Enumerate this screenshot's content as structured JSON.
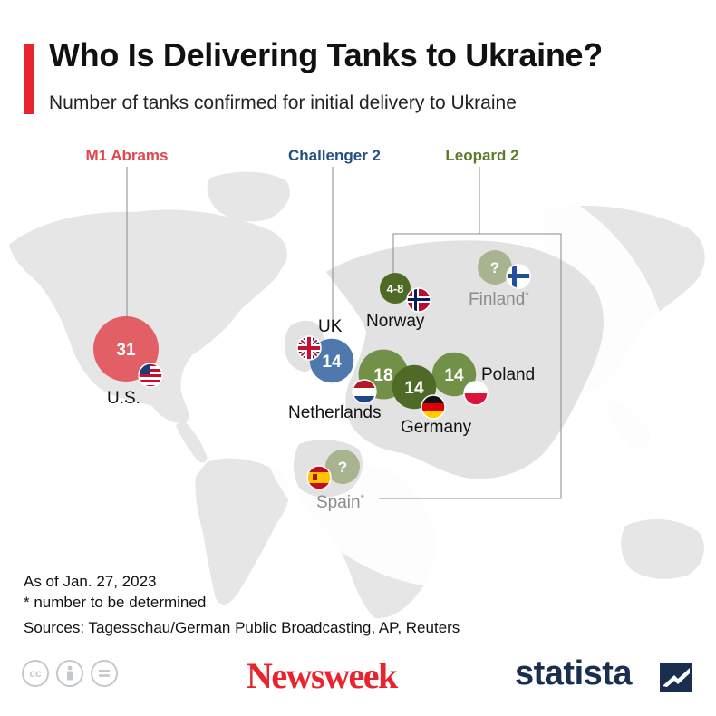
{
  "header": {
    "title": "Who Is Delivering Tanks to Ukraine?",
    "subtitle": "Number of tanks confirmed for initial delivery to Ukraine",
    "accent_color": "#e8242e"
  },
  "chart_data": {
    "type": "bubble-map",
    "title": "Who Is Delivering Tanks to Ukraine?",
    "subtitle": "Number of tanks confirmed for initial delivery to Ukraine",
    "groups": [
      {
        "name": "M1 Abrams",
        "color": "#e0474f"
      },
      {
        "name": "Challenger 2",
        "color": "#234f86"
      },
      {
        "name": "Leopard 2",
        "color": "#5b7a2a"
      }
    ],
    "points": [
      {
        "country": "U.S.",
        "tank": "M1 Abrams",
        "value": 31,
        "label": "31",
        "flag": "us-flag-icon",
        "color": "#e0474f",
        "confirmed": true
      },
      {
        "country": "UK",
        "tank": "Challenger 2",
        "value": 14,
        "label": "14",
        "flag": "uk-flag-icon",
        "color": "#4f79ad",
        "confirmed": true
      },
      {
        "country": "Netherlands",
        "tank": "Leopard 2",
        "value": 18,
        "label": "18",
        "flag": "netherlands-flag-icon",
        "color": "#6d8b3f",
        "confirmed": true
      },
      {
        "country": "Germany",
        "tank": "Leopard 2",
        "value": 14,
        "label": "14",
        "flag": "germany-flag-icon",
        "color": "#4f6a26",
        "confirmed": true
      },
      {
        "country": "Poland",
        "tank": "Leopard 2",
        "value": 14,
        "label": "14",
        "flag": "poland-flag-icon",
        "color": "#6d8b3f",
        "confirmed": true
      },
      {
        "country": "Norway",
        "tank": "Leopard 2",
        "value": 6,
        "label": "4-8",
        "flag": "norway-flag-icon",
        "color": "#4f6a26",
        "confirmed": true
      },
      {
        "country": "Finland",
        "tank": "Leopard 2",
        "value": null,
        "label": "?",
        "flag": "finland-flag-icon",
        "color": "#a7b48f",
        "confirmed": false
      },
      {
        "country": "Spain",
        "tank": "Leopard 2",
        "value": null,
        "label": "?",
        "flag": "spain-flag-icon",
        "color": "#a7b48f",
        "confirmed": false
      }
    ],
    "undetermined_marker": "*"
  },
  "footer": {
    "as_of": "As of Jan. 27, 2023",
    "note": "* number to be determined",
    "sources": "Sources: Tagesschau/German Public Broadcasting, AP, Reuters"
  },
  "license_icons": [
    "cc-icon",
    "attribution-icon",
    "no-derivatives-icon"
  ],
  "logos": {
    "newsweek": "Newsweek",
    "statista": "statista",
    "newsweek_color": "#e8242e",
    "statista_color": "#1a2f4f"
  }
}
